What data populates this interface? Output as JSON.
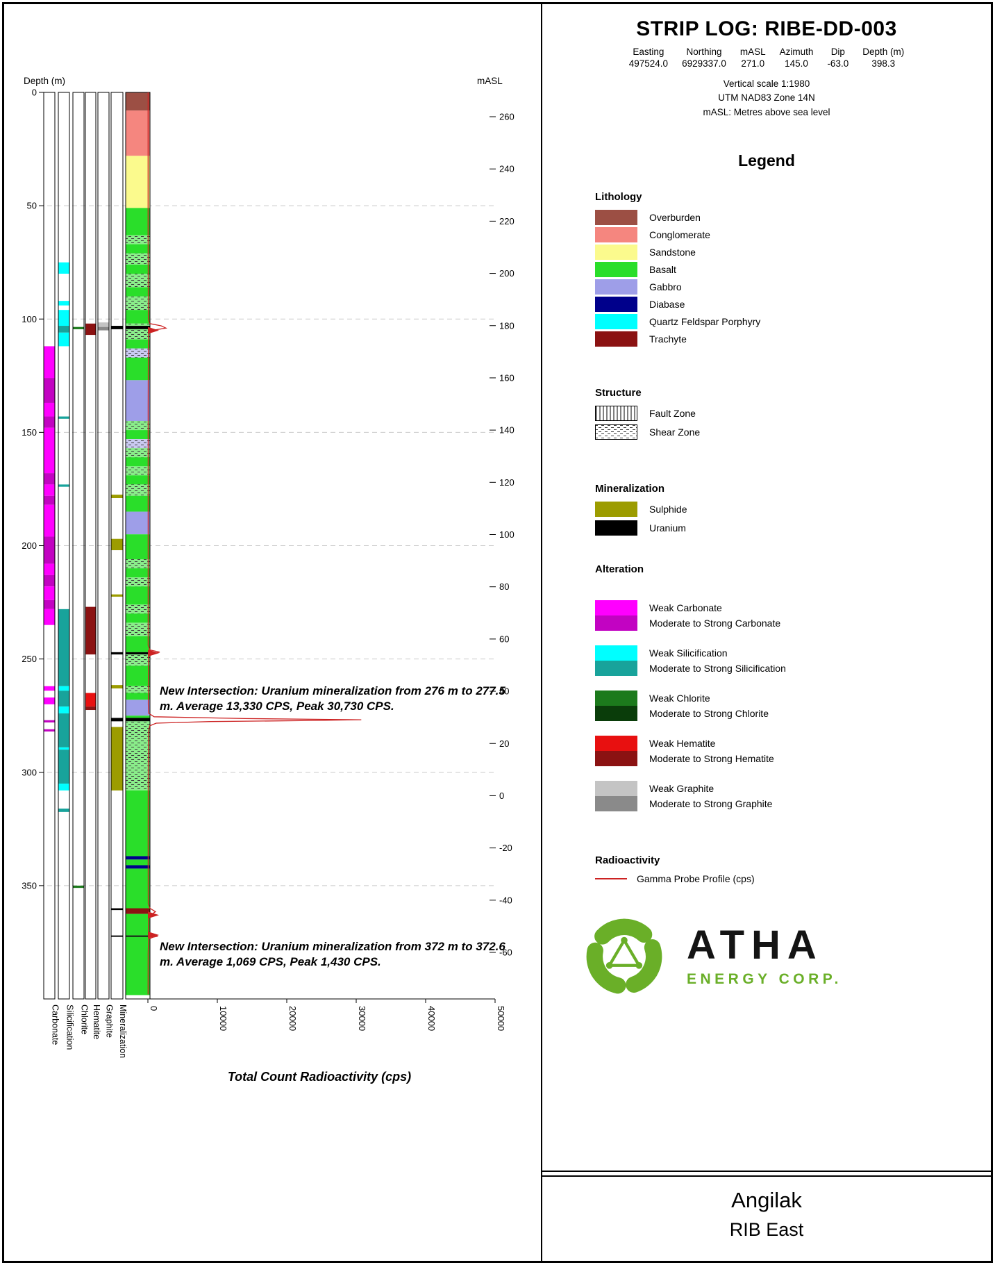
{
  "title_block": {
    "title": "STRIP LOG: RIBE-DD-003",
    "collar": {
      "headers": [
        "Easting",
        "Northing",
        "mASL",
        "Azimuth",
        "Dip",
        "Depth (m)"
      ],
      "values": [
        "497524.0",
        "6929337.0",
        "271.0",
        "145.0",
        "-63.0",
        "398.3"
      ]
    },
    "notes": [
      "Vertical scale 1:1980",
      "UTM NAD83 Zone 14N",
      "mASL: Metres above sea level"
    ]
  },
  "legend": {
    "title": "Legend",
    "lithology": {
      "title": "Lithology",
      "items": [
        {
          "key": "overburden",
          "label": "Overburden",
          "color": "#9c4f44"
        },
        {
          "key": "conglomerate",
          "label": "Conglomerate",
          "color": "#f5867f"
        },
        {
          "key": "sandstone",
          "label": "Sandstone",
          "color": "#fbfa8d"
        },
        {
          "key": "basalt",
          "label": "Basalt",
          "color": "#2ade2a"
        },
        {
          "key": "gabbro",
          "label": "Gabbro",
          "color": "#9e9ee8"
        },
        {
          "key": "diabase",
          "label": "Diabase",
          "color": "#00008b"
        },
        {
          "key": "qfp",
          "label": "Quartz Feldspar Porphyry",
          "color": "#00ffff"
        },
        {
          "key": "trachyte",
          "label": "Trachyte",
          "color": "#8b1212"
        }
      ]
    },
    "structure": {
      "title": "Structure",
      "items": [
        {
          "key": "fault",
          "label": "Fault Zone",
          "pattern": "fault"
        },
        {
          "key": "shear",
          "label": "Shear Zone",
          "pattern": "shear"
        }
      ]
    },
    "mineralization": {
      "title": "Mineralization",
      "items": [
        {
          "key": "sulphide",
          "label": "Sulphide",
          "color": "#9c9c00"
        },
        {
          "key": "uranium",
          "label": "Uranium",
          "color": "#000000"
        }
      ]
    },
    "alteration": {
      "title": "Alteration",
      "groups": [
        {
          "name": "Carbonate",
          "weak": {
            "label": "Weak Carbonate",
            "color": "#ff00ff"
          },
          "strong": {
            "label": "Moderate to Strong Carbonate",
            "color": "#c203c2"
          }
        },
        {
          "name": "Silicification",
          "weak": {
            "label": "Weak Silicification",
            "color": "#00ffff"
          },
          "strong": {
            "label": "Moderate to Strong Silicification",
            "color": "#18a39b"
          }
        },
        {
          "name": "Chlorite",
          "weak": {
            "label": "Weak Chlorite",
            "color": "#1c7a1c"
          },
          "strong": {
            "label": "Moderate to Strong Chlorite",
            "color": "#0a3d0a"
          }
        },
        {
          "name": "Hematite",
          "weak": {
            "label": "Weak Hematite",
            "color": "#e81010"
          },
          "strong": {
            "label": "Moderate to Strong Hematite",
            "color": "#8b1212"
          }
        },
        {
          "name": "Graphite",
          "weak": {
            "label": "Weak Graphite",
            "color": "#c4c4c4"
          },
          "strong": {
            "label": "Moderate to Strong Graphite",
            "color": "#8a8a8a"
          }
        }
      ]
    },
    "radioactivity": {
      "title": "Radioactivity",
      "items": [
        {
          "key": "gamma",
          "label": "Gamma Probe Profile (cps)",
          "color": "#cc2222"
        }
      ]
    }
  },
  "strip_log": {
    "depth_axis": {
      "label": "Depth (m)",
      "ticks": [
        0,
        50,
        100,
        150,
        200,
        250,
        300,
        350
      ],
      "total_depth": 398.3
    },
    "masl_axis": {
      "label": "mASL",
      "ticks": [
        260,
        240,
        220,
        200,
        180,
        160,
        140,
        120,
        100,
        80,
        60,
        40,
        20,
        0,
        -20,
        -40,
        -60
      ]
    },
    "columns": [
      {
        "id": "carbonate",
        "label": "Carbonate"
      },
      {
        "id": "silicification",
        "label": "Silicification"
      },
      {
        "id": "chlorite",
        "label": "Chlorite"
      },
      {
        "id": "hematite",
        "label": "Hematite"
      },
      {
        "id": "graphite",
        "label": "Graphite"
      },
      {
        "id": "mineralization",
        "label": "Mineralization"
      }
    ],
    "lithology_intervals": [
      {
        "from": 0,
        "to": 8,
        "unit": "overburden"
      },
      {
        "from": 8,
        "to": 28,
        "unit": "conglomerate"
      },
      {
        "from": 28,
        "to": 51,
        "unit": "sandstone"
      },
      {
        "from": 51,
        "to": 63,
        "unit": "basalt"
      },
      {
        "from": 63,
        "to": 67,
        "unit": "basalt",
        "shear": true
      },
      {
        "from": 67,
        "to": 71,
        "unit": "basalt"
      },
      {
        "from": 71,
        "to": 76,
        "unit": "basalt",
        "shear": true
      },
      {
        "from": 76,
        "to": 80,
        "unit": "basalt"
      },
      {
        "from": 80,
        "to": 86,
        "unit": "basalt",
        "shear": true
      },
      {
        "from": 86,
        "to": 90,
        "unit": "basalt"
      },
      {
        "from": 90,
        "to": 96,
        "unit": "basalt",
        "shear": true
      },
      {
        "from": 96,
        "to": 102,
        "unit": "basalt"
      },
      {
        "from": 102,
        "to": 103,
        "unit": "basalt",
        "shear": true
      },
      {
        "from": 103,
        "to": 104.5,
        "unit": "uranium"
      },
      {
        "from": 104.5,
        "to": 109,
        "unit": "basalt",
        "shear": true
      },
      {
        "from": 109,
        "to": 113,
        "unit": "basalt"
      },
      {
        "from": 113,
        "to": 117,
        "unit": "gabbro",
        "shear": true
      },
      {
        "from": 117,
        "to": 127,
        "unit": "basalt"
      },
      {
        "from": 127,
        "to": 145,
        "unit": "gabbro"
      },
      {
        "from": 145,
        "to": 149,
        "unit": "basalt",
        "shear": true
      },
      {
        "from": 149,
        "to": 153,
        "unit": "basalt"
      },
      {
        "from": 153,
        "to": 157,
        "unit": "gabbro",
        "shear": true
      },
      {
        "from": 157,
        "to": 161,
        "unit": "basalt",
        "shear": true
      },
      {
        "from": 161,
        "to": 165,
        "unit": "basalt"
      },
      {
        "from": 165,
        "to": 169,
        "unit": "basalt",
        "shear": true
      },
      {
        "from": 169,
        "to": 173,
        "unit": "basalt"
      },
      {
        "from": 173,
        "to": 178,
        "unit": "basalt",
        "shear": true
      },
      {
        "from": 178,
        "to": 185,
        "unit": "basalt"
      },
      {
        "from": 185,
        "to": 195,
        "unit": "gabbro"
      },
      {
        "from": 195,
        "to": 206,
        "unit": "basalt"
      },
      {
        "from": 206,
        "to": 210,
        "unit": "basalt",
        "shear": true
      },
      {
        "from": 210,
        "to": 214,
        "unit": "basalt"
      },
      {
        "from": 214,
        "to": 218,
        "unit": "basalt",
        "shear": true
      },
      {
        "from": 218,
        "to": 226,
        "unit": "basalt"
      },
      {
        "from": 226,
        "to": 230,
        "unit": "basalt",
        "shear": true
      },
      {
        "from": 230,
        "to": 234,
        "unit": "basalt"
      },
      {
        "from": 234,
        "to": 240,
        "unit": "basalt",
        "shear": true
      },
      {
        "from": 240,
        "to": 247,
        "unit": "basalt"
      },
      {
        "from": 247,
        "to": 248,
        "unit": "uranium"
      },
      {
        "from": 248,
        "to": 253,
        "unit": "basalt",
        "shear": true
      },
      {
        "from": 253,
        "to": 262,
        "unit": "basalt"
      },
      {
        "from": 262,
        "to": 265,
        "unit": "basalt",
        "shear": true
      },
      {
        "from": 265,
        "to": 268,
        "unit": "basalt"
      },
      {
        "from": 268,
        "to": 275,
        "unit": "gabbro"
      },
      {
        "from": 275,
        "to": 276,
        "unit": "basalt"
      },
      {
        "from": 276,
        "to": 277.5,
        "unit": "uranium"
      },
      {
        "from": 277.5,
        "to": 308,
        "unit": "basalt",
        "shear": true
      },
      {
        "from": 308,
        "to": 337,
        "unit": "basalt"
      },
      {
        "from": 337,
        "to": 338.5,
        "unit": "diabase"
      },
      {
        "from": 338.5,
        "to": 341,
        "unit": "basalt"
      },
      {
        "from": 341,
        "to": 342.5,
        "unit": "diabase"
      },
      {
        "from": 342.5,
        "to": 360,
        "unit": "basalt"
      },
      {
        "from": 360,
        "to": 362.5,
        "unit": "trachyte"
      },
      {
        "from": 362.5,
        "to": 372,
        "unit": "basalt"
      },
      {
        "from": 372,
        "to": 372.6,
        "unit": "uranium"
      },
      {
        "from": 372.6,
        "to": 398.3,
        "unit": "basalt"
      }
    ],
    "alteration_intervals": {
      "carbonate": [
        {
          "from": 112,
          "to": 126,
          "grade": "weak"
        },
        {
          "from": 126,
          "to": 137,
          "grade": "strong"
        },
        {
          "from": 137,
          "to": 143,
          "grade": "weak"
        },
        {
          "from": 143,
          "to": 148,
          "grade": "strong"
        },
        {
          "from": 148,
          "to": 168,
          "grade": "weak"
        },
        {
          "from": 168,
          "to": 173,
          "grade": "strong"
        },
        {
          "from": 173,
          "to": 178,
          "grade": "weak"
        },
        {
          "from": 178,
          "to": 182,
          "grade": "strong"
        },
        {
          "from": 182,
          "to": 196,
          "grade": "weak"
        },
        {
          "from": 196,
          "to": 208,
          "grade": "strong"
        },
        {
          "from": 208,
          "to": 213,
          "grade": "weak"
        },
        {
          "from": 213,
          "to": 218,
          "grade": "strong"
        },
        {
          "from": 218,
          "to": 224,
          "grade": "weak"
        },
        {
          "from": 224,
          "to": 228,
          "grade": "strong"
        },
        {
          "from": 228,
          "to": 235,
          "grade": "weak"
        },
        {
          "from": 262,
          "to": 264,
          "grade": "weak"
        },
        {
          "from": 267,
          "to": 270,
          "grade": "weak"
        },
        {
          "from": 277,
          "to": 278,
          "grade": "strong"
        },
        {
          "from": 281,
          "to": 282,
          "grade": "strong"
        }
      ],
      "silicification": [
        {
          "from": 75,
          "to": 80,
          "grade": "weak"
        },
        {
          "from": 92,
          "to": 94,
          "grade": "weak"
        },
        {
          "from": 96,
          "to": 103,
          "grade": "weak"
        },
        {
          "from": 103,
          "to": 106,
          "grade": "strong"
        },
        {
          "from": 106,
          "to": 112,
          "grade": "weak"
        },
        {
          "from": 143,
          "to": 144,
          "grade": "strong"
        },
        {
          "from": 173,
          "to": 174,
          "grade": "strong"
        },
        {
          "from": 228,
          "to": 262,
          "grade": "strong"
        },
        {
          "from": 262,
          "to": 264,
          "grade": "weak"
        },
        {
          "from": 264,
          "to": 271,
          "grade": "strong"
        },
        {
          "from": 271,
          "to": 274,
          "grade": "weak"
        },
        {
          "from": 274,
          "to": 289,
          "grade": "strong"
        },
        {
          "from": 289,
          "to": 290,
          "grade": "weak"
        },
        {
          "from": 290,
          "to": 305,
          "grade": "strong"
        },
        {
          "from": 305,
          "to": 308,
          "grade": "weak"
        },
        {
          "from": 316,
          "to": 317.5,
          "grade": "strong"
        }
      ],
      "chlorite": [
        {
          "from": 103.5,
          "to": 104.5,
          "grade": "weak"
        },
        {
          "from": 350,
          "to": 351,
          "grade": "weak"
        }
      ],
      "hematite": [
        {
          "from": 102,
          "to": 107,
          "grade": "strong"
        },
        {
          "from": 227,
          "to": 248,
          "grade": "strong"
        },
        {
          "from": 265,
          "to": 271,
          "grade": "weak"
        },
        {
          "from": 271,
          "to": 272.5,
          "grade": "strong"
        }
      ],
      "graphite": [
        {
          "from": 101.5,
          "to": 103.5,
          "grade": "weak"
        },
        {
          "from": 103.5,
          "to": 105,
          "grade": "strong"
        }
      ]
    },
    "mineralization_intervals": [
      {
        "from": 103,
        "to": 104.5,
        "type": "uranium"
      },
      {
        "from": 177.5,
        "to": 179,
        "type": "sulphide"
      },
      {
        "from": 197,
        "to": 202,
        "type": "sulphide"
      },
      {
        "from": 221.5,
        "to": 222.5,
        "type": "sulphide"
      },
      {
        "from": 247,
        "to": 248,
        "type": "uranium"
      },
      {
        "from": 261.5,
        "to": 263,
        "type": "sulphide"
      },
      {
        "from": 276,
        "to": 277.5,
        "type": "uranium"
      },
      {
        "from": 280,
        "to": 308,
        "type": "sulphide"
      },
      {
        "from": 360,
        "to": 360.8,
        "type": "uranium"
      },
      {
        "from": 372,
        "to": 372.6,
        "type": "uranium"
      }
    ],
    "spike_arrow_depths": [
      105,
      247.4,
      363,
      371.8
    ],
    "annotations": [
      {
        "text": "New Intersection: Uranium mineralization from 276 m to 277.5 m. Average 13,330 CPS, Peak 30,730 CPS."
      },
      {
        "text": "New Intersection: Uranium mineralization from 372 m to 372.6 m. Average 1,069 CPS, Peak 1,430 CPS."
      }
    ]
  },
  "chart_data": {
    "type": "line",
    "title": "Total Count Radioactivity (cps)",
    "xlabel": "Total Count Radioactivity (cps)",
    "ylabel": "Depth (m)",
    "xlim": [
      0,
      50000
    ],
    "x_ticks": [
      0,
      10000,
      20000,
      30000,
      40000,
      50000
    ],
    "series": [
      {
        "name": "Gamma Probe Profile (cps)",
        "color": "#cc2222",
        "points": [
          [
            0,
            30
          ],
          [
            60,
            30
          ],
          [
            100,
            60
          ],
          [
            102,
            250
          ],
          [
            103,
            1900
          ],
          [
            104,
            2600
          ],
          [
            105,
            600
          ],
          [
            106,
            70
          ],
          [
            140,
            40
          ],
          [
            200,
            40
          ],
          [
            244,
            45
          ],
          [
            246,
            300
          ],
          [
            247,
            1700
          ],
          [
            248,
            400
          ],
          [
            249,
            70
          ],
          [
            262,
            60
          ],
          [
            270,
            60
          ],
          [
            274,
            120
          ],
          [
            275.5,
            900
          ],
          [
            276.3,
            14000
          ],
          [
            276.8,
            30730
          ],
          [
            277.2,
            22000
          ],
          [
            277.6,
            9000
          ],
          [
            278.3,
            1200
          ],
          [
            279.5,
            250
          ],
          [
            282,
            80
          ],
          [
            300,
            50
          ],
          [
            330,
            40
          ],
          [
            358,
            50
          ],
          [
            360,
            300
          ],
          [
            361.5,
            1100
          ],
          [
            362.5,
            600
          ],
          [
            364,
            80
          ],
          [
            370,
            60
          ],
          [
            371.5,
            300
          ],
          [
            372.3,
            1430
          ],
          [
            372.8,
            700
          ],
          [
            373.6,
            90
          ],
          [
            380,
            40
          ],
          [
            398,
            35
          ]
        ]
      }
    ]
  },
  "branding": {
    "company": "ATHA",
    "subtitle": "ENERGY CORP."
  },
  "footer": {
    "project": "Angilak",
    "area": "RIB East"
  }
}
